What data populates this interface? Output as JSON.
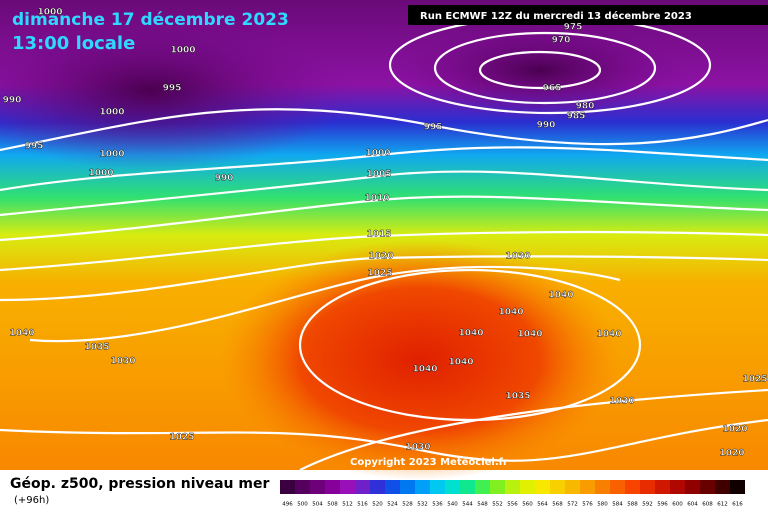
{
  "header": {
    "date": "dimanche 17 décembre 2023",
    "time": "13:00 locale",
    "run": "Run ECMWF 12Z du mercredi 13 décembre 2023"
  },
  "isobar_labels": [
    1000,
    1000,
    990,
    995,
    1000,
    995,
    1000,
    1000,
    990,
    995,
    1000,
    1005,
    1010,
    1015,
    1020,
    1025,
    975,
    970,
    965,
    980,
    985,
    990,
    1030,
    1040,
    1040,
    1040,
    1040,
    1040,
    1040,
    1035,
    1030,
    1040,
    1040,
    1035,
    1030,
    1025,
    1020,
    1020,
    1025,
    1030
  ],
  "footer": {
    "title": "Géop. z500, pression niveau mer",
    "subtitle": "(+96h)",
    "copyright": "Copyright 2023 Meteociel.fr"
  },
  "legend": {
    "values": [
      496,
      500,
      504,
      508,
      512,
      516,
      520,
      524,
      528,
      532,
      536,
      540,
      544,
      548,
      552,
      556,
      560,
      564,
      568,
      572,
      576,
      580,
      584,
      588,
      592,
      596,
      600,
      604,
      608,
      612,
      616
    ],
    "colors": [
      "#3a0040",
      "#55005e",
      "#6e007a",
      "#86009a",
      "#9a10b8",
      "#7020c8",
      "#3030d8",
      "#1050e8",
      "#0078f0",
      "#00a0f8",
      "#00c8f0",
      "#00e0d0",
      "#10e890",
      "#40f050",
      "#80f020",
      "#b8f010",
      "#e0f000",
      "#f8e800",
      "#f8d000",
      "#f8b800",
      "#f89c00",
      "#f88000",
      "#f86000",
      "#f84400",
      "#e82c00",
      "#d01800",
      "#b00800",
      "#900000",
      "#680000",
      "#400000",
      "#100000"
    ]
  }
}
